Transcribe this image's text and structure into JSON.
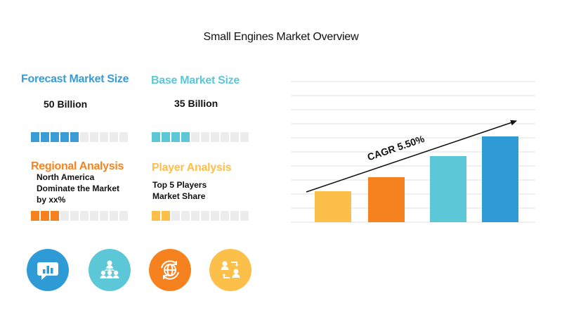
{
  "page": {
    "title": "Small Engines Market Overview"
  },
  "kpis": {
    "forecast": {
      "heading": "Forecast Market Size",
      "value": "50 Billion",
      "filled": 5,
      "total": 10,
      "color": "#3a9bd5"
    },
    "base": {
      "heading": "Base Market Size",
      "value": "35 Billion",
      "filled": 4,
      "total": 10,
      "color": "#5cc8d7"
    },
    "regional": {
      "heading": "Regional Analysis",
      "lines": [
        "North America",
        "Dominate the Market",
        "by xx%"
      ],
      "filled": 3,
      "total": 10,
      "color": "#f5821f"
    },
    "player": {
      "heading": "Player Analysis",
      "lines": [
        "Top 5 Players",
        "Market Share"
      ],
      "filled": 2,
      "total": 10,
      "color": "#fbbf4a"
    }
  },
  "icons": [
    {
      "name": "chat-chart-icon",
      "color": "#2e9bd6"
    },
    {
      "name": "network-people-icon",
      "color": "#5cc8d7"
    },
    {
      "name": "globe-refresh-icon",
      "color": "#f5821f"
    },
    {
      "name": "people-exchange-icon",
      "color": "#fbbf4a"
    }
  ],
  "chart_data": {
    "type": "bar",
    "title": "",
    "xlabel": "",
    "ylabel": "",
    "categories": [
      "",
      "",
      "",
      ""
    ],
    "values": [
      22,
      32,
      47,
      61
    ],
    "colors": [
      "#fbbf4a",
      "#f5821f",
      "#5cc8d7",
      "#2e9bd6"
    ],
    "ylim": [
      0,
      100
    ],
    "grid": true,
    "annotation": "CAGR 5.50%"
  }
}
